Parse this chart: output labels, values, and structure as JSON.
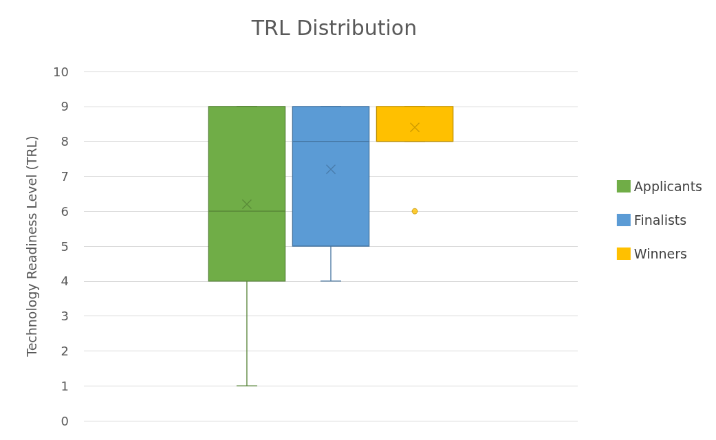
{
  "chart_data": {
    "type": "box",
    "title": "TRL Distribution",
    "ylabel": "Technology Readiness Level (TRL)",
    "categories": [
      null
    ],
    "series": [
      {
        "name": "Applicants",
        "color": "#70ad47",
        "boxes": [
          {
            "low": 1,
            "q1": 4,
            "median": 6,
            "q3": 9,
            "high": 9,
            "mean": 6.2
          }
        ]
      },
      {
        "name": "Finalists",
        "color": "#5b9bd5",
        "boxes": [
          {
            "low": 4,
            "q1": 5,
            "median": 8,
            "q3": 9,
            "high": 9,
            "mean": 7.2
          }
        ]
      },
      {
        "name": "Winners",
        "color": "#ffc000",
        "boxes": [
          {
            "low": 8,
            "q1": 8,
            "median": 8,
            "q3": 9,
            "high": 9,
            "mean": 8.4,
            "outliers": [
              6
            ]
          }
        ]
      }
    ],
    "ylim": [
      0,
      10
    ],
    "yticks": [
      0,
      1,
      2,
      3,
      4,
      5,
      6,
      7,
      8,
      9,
      10
    ],
    "grid": "y",
    "legend": "right",
    "marker": "cross"
  }
}
